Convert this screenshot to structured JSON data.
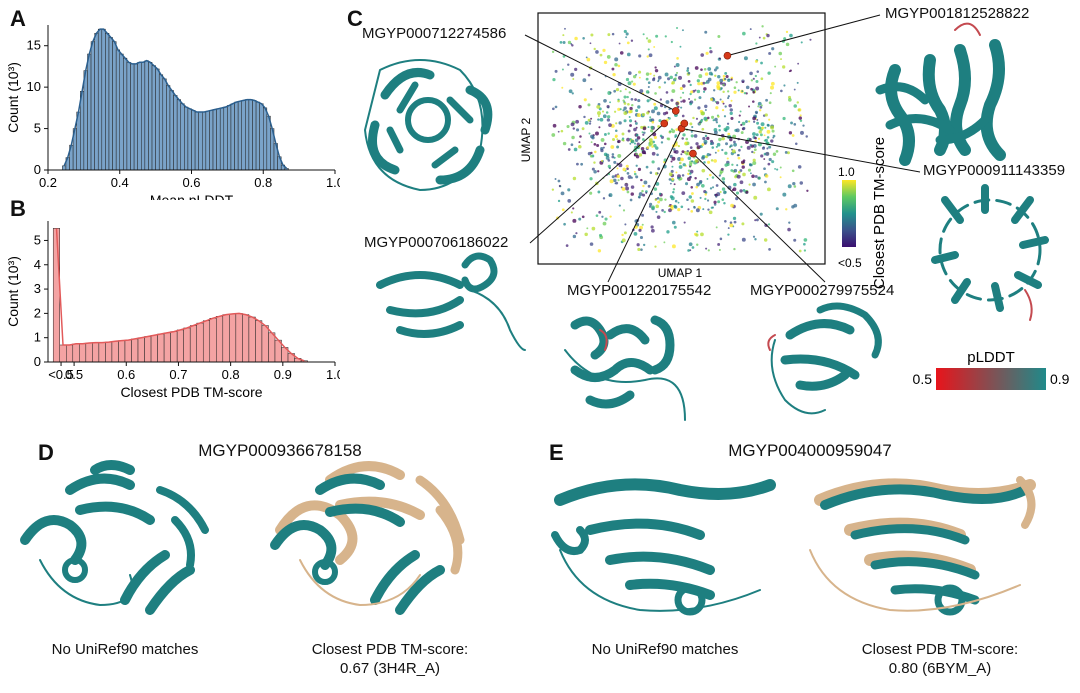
{
  "panels": {
    "a": "A",
    "b": "B",
    "c": "C",
    "d": "D",
    "e": "E"
  },
  "chart_data": [
    {
      "type": "bar",
      "panel": "A",
      "title": "",
      "xlabel": "Mean pLDDT",
      "ylabel": "Count (10³)",
      "xlim": [
        0.2,
        1.0
      ],
      "ylim": [
        0,
        17.5
      ],
      "xticks": [
        "0.2",
        "0.4",
        "0.6",
        "0.8",
        "1.0"
      ],
      "xtick_values": [
        0.2,
        0.4,
        0.6,
        0.8,
        1.0
      ],
      "yticks": [
        "0",
        "5",
        "10",
        "15"
      ],
      "ytick_values": [
        0,
        5,
        10,
        15
      ],
      "bin_start": 0.24,
      "bin_width": 0.01,
      "values": [
        0.5,
        1.5,
        3,
        5,
        7,
        9.5,
        12,
        14,
        15.5,
        16.5,
        17,
        17,
        16.5,
        16,
        15.5,
        14.5,
        14,
        13.5,
        13,
        12.8,
        12.8,
        13,
        13,
        13.2,
        13,
        12.6,
        12.2,
        11.5,
        11,
        10.2,
        9.6,
        9,
        8.5,
        8,
        7.6,
        7.4,
        7.2,
        7,
        7,
        7,
        7.1,
        7.2,
        7.3,
        7.4,
        7.5,
        7.6,
        7.8,
        8,
        8.2,
        8.3,
        8.4,
        8.5,
        8.5,
        8.4,
        8.2,
        8,
        7.5,
        6.5,
        5,
        3.2,
        1.6,
        0.6,
        0.2
      ]
    },
    {
      "type": "bar",
      "panel": "B",
      "title": "",
      "xlabel": "Closest PDB TM-score",
      "ylabel": "Count (10³)",
      "xlim": [
        0.45,
        1.0
      ],
      "ylim": [
        0,
        5.8
      ],
      "xticks": [
        "<0.5",
        "0.5",
        "0.6",
        "0.7",
        "0.8",
        "0.9",
        "1.0"
      ],
      "xtick_values": [
        0.475,
        0.5,
        0.6,
        0.7,
        0.8,
        0.9,
        1.0
      ],
      "yticks": [
        "0",
        "1",
        "2",
        "3",
        "4",
        "5"
      ],
      "ytick_values": [
        0,
        1,
        2,
        3,
        4,
        5
      ],
      "bin_start": 0.46,
      "bin_width": 0.0125,
      "values": [
        5.5,
        0.7,
        0.7,
        0.75,
        0.75,
        0.78,
        0.8,
        0.8,
        0.82,
        0.85,
        0.88,
        0.9,
        0.95,
        1.0,
        1.05,
        1.1,
        1.15,
        1.2,
        1.25,
        1.32,
        1.4,
        1.5,
        1.6,
        1.7,
        1.8,
        1.88,
        1.95,
        1.98,
        2.0,
        1.95,
        1.85,
        1.7,
        1.5,
        1.2,
        0.9,
        0.6,
        0.35,
        0.15,
        0.05
      ]
    },
    {
      "type": "scatter",
      "panel": "C",
      "title": "",
      "xlabel": "UMAP 1",
      "ylabel": "UMAP 2",
      "colorbar_label": "Closest PDB TM-score",
      "colorbar_top": "1.0",
      "colorbar_bottom": "<0.5",
      "highlighted_points": [
        {
          "id": "MGYP000712274586",
          "x": 0.48,
          "y": 0.61
        },
        {
          "id": "MGYP001812528822",
          "x": 0.66,
          "y": 0.83
        },
        {
          "id": "MGYP000911143359",
          "x": 0.5,
          "y": 0.54
        },
        {
          "id": "MGYP000706186022",
          "x": 0.44,
          "y": 0.56
        },
        {
          "id": "MGYP001220175542",
          "x": 0.51,
          "y": 0.56
        },
        {
          "id": "MGYP000279975524",
          "x": 0.54,
          "y": 0.44
        }
      ]
    }
  ],
  "umap_labels": {
    "p1": "MGYP000712274586",
    "p2": "MGYP001812528822",
    "p3": "MGYP000911143359",
    "p4": "MGYP000706186022",
    "p5": "MGYP001220175542",
    "p6": "MGYP000279975524"
  },
  "plddt_bar": {
    "title": "pLDDT",
    "min": "0.5",
    "max": "0.9",
    "low_color": "#e8141b",
    "high_color": "#1f8a8a"
  },
  "panel_d": {
    "title": "MGYP000936678158",
    "left_caption": "No UniRef90 matches",
    "right_caption_1": "Closest PDB TM-score:",
    "right_caption_2": "0.67 (3H4R_A)"
  },
  "panel_e": {
    "title": "MGYP004000959047",
    "left_caption": "No UniRef90 matches",
    "right_caption_1": "Closest PDB TM-score:",
    "right_caption_2": "0.80 (6BYM_A)"
  },
  "colors": {
    "teal": "#1e7f80",
    "wheat": "#d7b48c",
    "hist_a": "#7aa3c9",
    "hist_b": "#f4a3a3",
    "point": "#d63a1a"
  }
}
